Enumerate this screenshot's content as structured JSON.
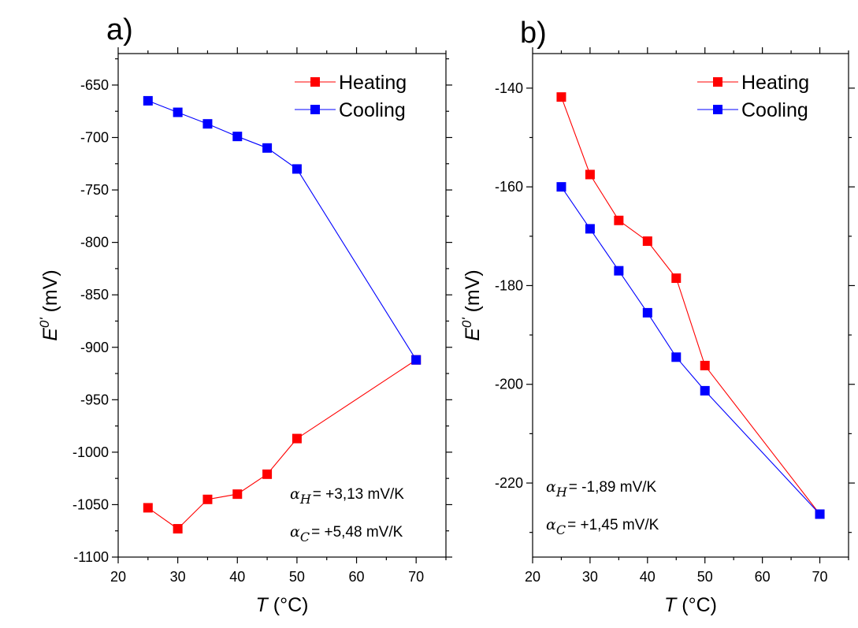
{
  "chart_data": [
    {
      "type": "line",
      "panel_label": "a)",
      "x": [
        25,
        30,
        35,
        40,
        45,
        50,
        70
      ],
      "series": [
        {
          "name": "Heating",
          "color": "#ff0000",
          "values": [
            -1053,
            -1073,
            -1045,
            -1040,
            -1021,
            -987,
            -912
          ]
        },
        {
          "name": "Cooling",
          "color": "#0000ff",
          "values": [
            -665,
            -676,
            -687,
            -699,
            -710,
            -730,
            -912
          ]
        }
      ],
      "xlabel": {
        "var": "T",
        "unit": " (°C)"
      },
      "ylabel": {
        "var": "E",
        "sup": "0'",
        "unit": " (mV)"
      },
      "xlim": [
        20,
        75
      ],
      "ylim": [
        -1100,
        -620
      ],
      "xticks": [
        20,
        30,
        40,
        50,
        60,
        70
      ],
      "yticks": [
        -650,
        -700,
        -750,
        -800,
        -850,
        -900,
        -950,
        -1000,
        -1050,
        -1100
      ],
      "legend_position": "top-right",
      "annotations": [
        {
          "symbol": "α",
          "sub": "H",
          "text": "= +3,13 mV/K"
        },
        {
          "symbol": "α",
          "sub": "C",
          "text": "= +5,48 mV/K"
        }
      ]
    },
    {
      "type": "line",
      "panel_label": "b)",
      "x": [
        25,
        30,
        35,
        40,
        45,
        50,
        70
      ],
      "series": [
        {
          "name": "Heating",
          "color": "#ff0000",
          "values": [
            -141.8,
            -157.5,
            -166.8,
            -171.0,
            -178.5,
            -196.2,
            -226.3
          ]
        },
        {
          "name": "Cooling",
          "color": "#0000ff",
          "values": [
            -160.0,
            -168.5,
            -177.0,
            -185.5,
            -194.5,
            -201.3,
            -226.3
          ]
        }
      ],
      "xlabel": {
        "var": "T",
        "unit": " (°C)"
      },
      "ylabel": {
        "var": "E",
        "sup": "0'",
        "unit": " (mV)"
      },
      "xlim": [
        20,
        75
      ],
      "ylim": [
        -235,
        -133
      ],
      "xticks": [
        20,
        30,
        40,
        50,
        60,
        70
      ],
      "yticks": [
        -140,
        -160,
        -180,
        -200,
        -220
      ],
      "legend_position": "top-right",
      "annotations": [
        {
          "symbol": "α",
          "sub": "H",
          "text": "= -1,89 mV/K"
        },
        {
          "symbol": "α",
          "sub": "C",
          "text": "= +1,45 mV/K"
        }
      ]
    }
  ]
}
